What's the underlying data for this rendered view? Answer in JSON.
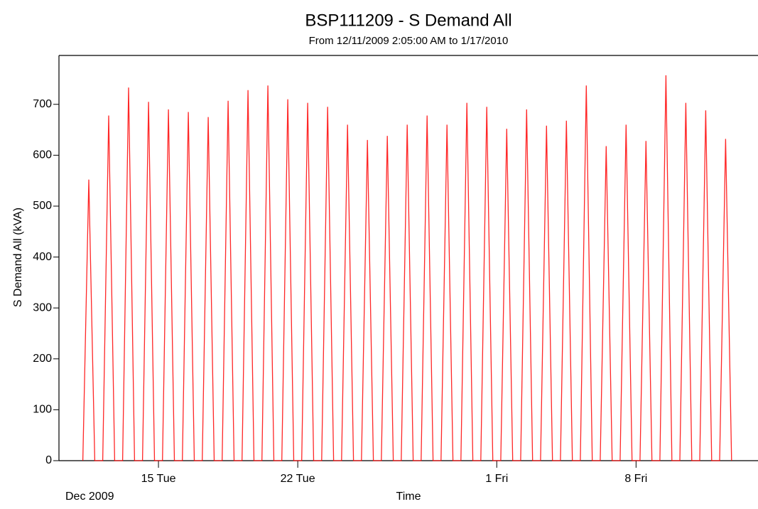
{
  "chart_data": {
    "type": "line",
    "title": "BSP111209 - S Demand All",
    "subtitle": "From 12/11/2009 2:05:00 AM to 1/17/2010",
    "y_label": "S Demand All (kVA)",
    "x_label": "Time",
    "x_period_label": "Dec 2009",
    "x": [
      11.2,
      11.5,
      11.8,
      12.2,
      12.5,
      12.8,
      13.2,
      13.5,
      13.8,
      14.2,
      14.5,
      14.8,
      15.2,
      15.5,
      15.8,
      16.2,
      16.5,
      16.8,
      17.2,
      17.5,
      17.8,
      18.2,
      18.5,
      18.8,
      19.2,
      19.5,
      19.8,
      20.2,
      20.5,
      20.8,
      21.2,
      21.5,
      21.8,
      22.2,
      22.5,
      22.8,
      23.2,
      23.5,
      23.8,
      24.2,
      24.5,
      24.8,
      25.2,
      25.5,
      25.8,
      26.2,
      26.5,
      26.8,
      27.2,
      27.5,
      27.8,
      28.2,
      28.5,
      28.8,
      29.2,
      29.5,
      29.8,
      30.2,
      30.5,
      30.8,
      31.2,
      31.5,
      31.8,
      32.2,
      32.5,
      32.8,
      33.2,
      33.5,
      33.8,
      34.2,
      34.5,
      34.8,
      35.2,
      35.5,
      35.8,
      36.2,
      36.5,
      36.8,
      37.2,
      37.5,
      37.8,
      38.2,
      38.5,
      38.8,
      39.2,
      39.5,
      39.8,
      40.2,
      40.5,
      40.8,
      41.2,
      41.5,
      41.8,
      42.2,
      42.5,
      42.8,
      43.2,
      43.5,
      43.8
    ],
    "series": [
      {
        "color": "#ff0000",
        "values": [
          0,
          552,
          0,
          0,
          678,
          0,
          0,
          733,
          0,
          0,
          705,
          0,
          0,
          690,
          0,
          0,
          685,
          0,
          0,
          675,
          0,
          0,
          707,
          0,
          0,
          728,
          0,
          0,
          737,
          0,
          0,
          710,
          0,
          0,
          703,
          0,
          0,
          695,
          0,
          0,
          660,
          0,
          0,
          630,
          0,
          0,
          638,
          0,
          0,
          660,
          0,
          0,
          678,
          0,
          0,
          660,
          0,
          0,
          703,
          0,
          0,
          695,
          0,
          0,
          652,
          0,
          0,
          690,
          0,
          0,
          658,
          0,
          0,
          668,
          0,
          0,
          737,
          0,
          0,
          618,
          0,
          0,
          660,
          0,
          0,
          628,
          0,
          0,
          757,
          0,
          0,
          703,
          0,
          0,
          688,
          0,
          0,
          632,
          0
        ]
      }
    ],
    "xlim": [
      10,
      44.7
    ],
    "xticks": [
      {
        "value": 15,
        "label": "15 Tue"
      },
      {
        "value": 22,
        "label": "22 Tue"
      },
      {
        "value": 32,
        "label": "1 Fri"
      },
      {
        "value": 39,
        "label": "8 Fri"
      }
    ],
    "ylim": [
      0,
      796
    ],
    "yticks": [
      0,
      100,
      200,
      300,
      400,
      500,
      600,
      700
    ],
    "grid": false
  }
}
